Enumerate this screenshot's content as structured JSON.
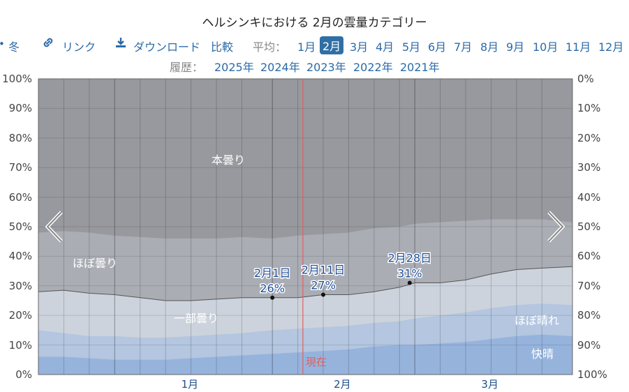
{
  "title": "ヘルシンキにおける 2月の雲量カテゴリー",
  "nav": {
    "season_label": "冬",
    "link_label": "リンク",
    "download_label": "ダウンロード",
    "compare_label": "比較",
    "average_label": "平均：",
    "months": [
      "1月",
      "2月",
      "3月",
      "4月",
      "5月",
      "6月",
      "7月",
      "8月",
      "9月",
      "10月",
      "11月",
      "12月"
    ],
    "selected_month": "2月",
    "history_label": "履歴：",
    "years": [
      "2025年",
      "2024年",
      "2023年",
      "2022年",
      "2021年"
    ]
  },
  "colors": {
    "overcast": "#97999e",
    "mostly_cloudy": "#aaadb4",
    "partly_cloudy": "#cdd3dc",
    "mostly_clear": "#b4c6e0",
    "clear": "#96b3dc",
    "now_line": "#e06060",
    "link": "#2a6aa8"
  },
  "chart_data": {
    "type": "area",
    "stacked": true,
    "x_ticks": [
      "1月",
      "2月",
      "3月"
    ],
    "y_left_ticks": [
      "0%",
      "10%",
      "20%",
      "30%",
      "40%",
      "50%",
      "60%",
      "70%",
      "80%",
      "90%",
      "100%"
    ],
    "y_right_ticks": [
      "100%",
      "90%",
      "80%",
      "70%",
      "60%",
      "50%",
      "40%",
      "30%",
      "20%",
      "10%",
      "0%"
    ],
    "ylim": [
      0,
      100
    ],
    "x_days": [
      -15,
      -10,
      -5,
      0,
      5,
      10,
      15,
      20,
      25,
      31,
      36,
      41,
      46,
      51,
      56,
      59,
      64,
      69,
      74,
      79,
      84,
      90
    ],
    "cumulative": {
      "clear": [
        6,
        6,
        5.5,
        5,
        5,
        5,
        5.5,
        6,
        6.5,
        7,
        7.5,
        8,
        8.5,
        9.5,
        10,
        10,
        10.5,
        11,
        12,
        13,
        13.5,
        13
      ],
      "mostly_clear": [
        15,
        14,
        13,
        13,
        12.5,
        12.5,
        13,
        13.5,
        14,
        15,
        15.5,
        16,
        16.5,
        17.5,
        18,
        19,
        20,
        21,
        22.5,
        23.5,
        24,
        23.5
      ],
      "partly_cloudy": [
        28,
        28.5,
        27.5,
        27,
        26,
        25,
        25,
        25.5,
        26,
        26,
        26,
        27,
        27,
        28,
        29.5,
        31,
        31,
        32,
        34,
        35.5,
        36,
        36.5
      ],
      "mostly_cloudy": [
        48,
        48.5,
        48,
        47,
        46.5,
        46,
        46,
        46,
        46.5,
        46,
        47,
        47.5,
        48,
        49.5,
        50,
        51,
        51.5,
        52,
        52.5,
        52.5,
        52.5,
        51.5
      ],
      "overcast": [
        100,
        100,
        100,
        100,
        100,
        100,
        100,
        100,
        100,
        100,
        100,
        100,
        100,
        100,
        100,
        100,
        100,
        100,
        100,
        100,
        100,
        100
      ]
    },
    "band_labels": {
      "overcast": "本曇り",
      "mostly_cloudy": "ほぼ曇り",
      "partly_cloudy": "一部曇り",
      "mostly_clear": "ほぼ晴れ",
      "clear": "快晴"
    },
    "annotations": [
      {
        "date": "2月1日",
        "value": "26%",
        "day": 31,
        "pct": 26
      },
      {
        "date": "2月11日",
        "value": "27%",
        "day": 41,
        "pct": 27
      },
      {
        "date": "2月28日",
        "value": "31%",
        "day": 58,
        "pct": 31
      }
    ],
    "now_label": "現在",
    "now_day": 37
  }
}
